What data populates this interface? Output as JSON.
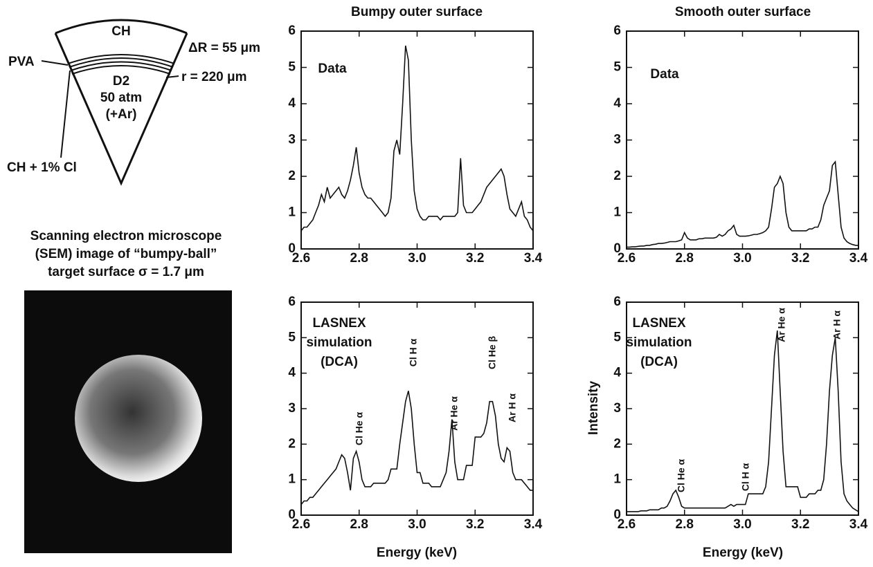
{
  "chart_data": [
    {
      "type": "line",
      "title": "Bumpy outer surface",
      "text_lines": [
        "Data"
      ],
      "annotations": [],
      "x": [
        2.6,
        2.61,
        2.62,
        2.63,
        2.64,
        2.65,
        2.66,
        2.67,
        2.68,
        2.69,
        2.7,
        2.71,
        2.72,
        2.73,
        2.74,
        2.75,
        2.76,
        2.77,
        2.78,
        2.79,
        2.8,
        2.81,
        2.82,
        2.83,
        2.84,
        2.85,
        2.86,
        2.87,
        2.88,
        2.89,
        2.9,
        2.91,
        2.92,
        2.93,
        2.94,
        2.95,
        2.96,
        2.97,
        2.98,
        2.99,
        3.0,
        3.01,
        3.02,
        3.03,
        3.04,
        3.05,
        3.06,
        3.07,
        3.08,
        3.09,
        3.1,
        3.11,
        3.12,
        3.13,
        3.14,
        3.15,
        3.16,
        3.17,
        3.18,
        3.19,
        3.2,
        3.21,
        3.22,
        3.23,
        3.24,
        3.25,
        3.26,
        3.27,
        3.28,
        3.29,
        3.3,
        3.31,
        3.32,
        3.33,
        3.34,
        3.35,
        3.36,
        3.37,
        3.38,
        3.39,
        3.4
      ],
      "series": [
        {
          "color": "#111111",
          "values": [
            0.5,
            0.6,
            0.6,
            0.7,
            0.8,
            1.0,
            1.2,
            1.5,
            1.3,
            1.7,
            1.4,
            1.5,
            1.6,
            1.7,
            1.5,
            1.4,
            1.6,
            1.9,
            2.3,
            2.8,
            2.1,
            1.7,
            1.5,
            1.4,
            1.4,
            1.3,
            1.2,
            1.1,
            1.0,
            0.9,
            1.0,
            1.4,
            2.7,
            3.0,
            2.6,
            4.0,
            5.6,
            5.2,
            3.0,
            1.6,
            1.1,
            0.9,
            0.8,
            0.8,
            0.9,
            0.9,
            0.9,
            0.9,
            0.8,
            0.9,
            0.9,
            0.9,
            0.9,
            0.9,
            1.0,
            2.5,
            1.2,
            1.0,
            1.0,
            1.0,
            1.1,
            1.2,
            1.3,
            1.5,
            1.7,
            1.8,
            1.9,
            2.0,
            2.1,
            2.2,
            2.0,
            1.5,
            1.1,
            1.0,
            0.9,
            1.1,
            1.3,
            0.9,
            0.8,
            0.6,
            0.5
          ]
        }
      ],
      "xlim": [
        2.6,
        3.4
      ],
      "ylim": [
        0,
        6
      ],
      "xticks": [
        2.6,
        2.8,
        {
          "value": 3,
          "label": "3.0"
        },
        3.2,
        3.4
      ],
      "yticks": [
        0,
        1,
        2,
        3,
        4,
        5,
        6
      ]
    },
    {
      "type": "line",
      "title": "Smooth outer surface",
      "text_lines": [
        "Data"
      ],
      "annotations": [],
      "x": [
        2.6,
        2.61,
        2.62,
        2.63,
        2.64,
        2.65,
        2.66,
        2.67,
        2.68,
        2.69,
        2.7,
        2.71,
        2.72,
        2.73,
        2.74,
        2.75,
        2.76,
        2.77,
        2.78,
        2.79,
        2.8,
        2.81,
        2.82,
        2.83,
        2.84,
        2.85,
        2.86,
        2.87,
        2.88,
        2.89,
        2.9,
        2.91,
        2.92,
        2.93,
        2.94,
        2.95,
        2.96,
        2.97,
        2.98,
        2.99,
        3.0,
        3.01,
        3.02,
        3.03,
        3.04,
        3.05,
        3.06,
        3.07,
        3.08,
        3.09,
        3.1,
        3.11,
        3.12,
        3.13,
        3.14,
        3.15,
        3.16,
        3.17,
        3.18,
        3.19,
        3.2,
        3.21,
        3.22,
        3.23,
        3.24,
        3.25,
        3.26,
        3.27,
        3.28,
        3.29,
        3.3,
        3.31,
        3.32,
        3.33,
        3.34,
        3.35,
        3.36,
        3.37,
        3.38,
        3.39,
        3.4
      ],
      "series": [
        {
          "color": "#111111",
          "values": [
            0.05,
            0.05,
            0.06,
            0.06,
            0.07,
            0.08,
            0.08,
            0.1,
            0.1,
            0.12,
            0.13,
            0.15,
            0.15,
            0.16,
            0.18,
            0.2,
            0.2,
            0.2,
            0.22,
            0.25,
            0.45,
            0.3,
            0.25,
            0.25,
            0.25,
            0.28,
            0.28,
            0.3,
            0.3,
            0.3,
            0.3,
            0.32,
            0.4,
            0.35,
            0.4,
            0.5,
            0.55,
            0.65,
            0.4,
            0.35,
            0.35,
            0.35,
            0.36,
            0.38,
            0.4,
            0.4,
            0.42,
            0.45,
            0.5,
            0.6,
            1.1,
            1.7,
            1.8,
            2.0,
            1.8,
            1.0,
            0.6,
            0.5,
            0.5,
            0.5,
            0.5,
            0.5,
            0.5,
            0.55,
            0.55,
            0.6,
            0.6,
            0.8,
            1.2,
            1.4,
            1.6,
            2.3,
            2.4,
            1.5,
            0.6,
            0.3,
            0.2,
            0.15,
            0.12,
            0.1,
            0.1
          ]
        }
      ],
      "xlim": [
        2.6,
        3.4
      ],
      "ylim": [
        0,
        6
      ],
      "xticks": [
        2.6,
        2.8,
        {
          "value": 3,
          "label": "3.0"
        },
        3.2,
        3.4
      ],
      "yticks": [
        0,
        1,
        2,
        3,
        4,
        5,
        6
      ]
    },
    {
      "type": "line",
      "x_label": "Energy (keV)",
      "text_lines": [
        "LASNEX",
        "simulation",
        "(DCA)"
      ],
      "annotations": [
        "Cl He α",
        "Cl H α",
        "Ar He α",
        "Cl He β",
        "Ar H α"
      ],
      "x": [
        2.6,
        2.61,
        2.62,
        2.63,
        2.64,
        2.65,
        2.66,
        2.67,
        2.68,
        2.69,
        2.7,
        2.71,
        2.72,
        2.73,
        2.74,
        2.75,
        2.76,
        2.77,
        2.78,
        2.79,
        2.8,
        2.81,
        2.82,
        2.83,
        2.84,
        2.85,
        2.86,
        2.87,
        2.88,
        2.89,
        2.9,
        2.91,
        2.92,
        2.93,
        2.94,
        2.95,
        2.96,
        2.97,
        2.98,
        2.99,
        3.0,
        3.01,
        3.02,
        3.03,
        3.04,
        3.05,
        3.06,
        3.07,
        3.08,
        3.09,
        3.1,
        3.11,
        3.12,
        3.13,
        3.14,
        3.15,
        3.16,
        3.17,
        3.18,
        3.19,
        3.2,
        3.21,
        3.22,
        3.23,
        3.24,
        3.25,
        3.26,
        3.27,
        3.28,
        3.29,
        3.3,
        3.31,
        3.32,
        3.33,
        3.34,
        3.35,
        3.36,
        3.37,
        3.38,
        3.39,
        3.4
      ],
      "series": [
        {
          "color": "#111111",
          "values": [
            0.3,
            0.4,
            0.4,
            0.5,
            0.5,
            0.6,
            0.7,
            0.8,
            0.9,
            1.0,
            1.1,
            1.2,
            1.3,
            1.5,
            1.7,
            1.6,
            1.2,
            0.7,
            1.6,
            1.8,
            1.5,
            1.0,
            0.8,
            0.8,
            0.8,
            0.9,
            0.9,
            0.9,
            0.9,
            0.9,
            1.0,
            1.3,
            1.3,
            1.3,
            2.0,
            2.6,
            3.2,
            3.5,
            3.0,
            2.0,
            1.2,
            1.2,
            0.9,
            0.9,
            0.9,
            0.8,
            0.8,
            0.8,
            0.8,
            1.0,
            1.2,
            1.8,
            2.7,
            1.5,
            1.0,
            1.0,
            1.0,
            1.4,
            1.4,
            1.4,
            2.2,
            2.2,
            2.2,
            2.3,
            2.6,
            3.2,
            3.2,
            2.8,
            2.0,
            1.6,
            1.5,
            1.9,
            1.8,
            1.2,
            1.0,
            1.0,
            1.0,
            0.9,
            0.8,
            0.7,
            0.7
          ]
        }
      ],
      "xlim": [
        2.6,
        3.4
      ],
      "ylim": [
        0,
        6
      ],
      "xticks": [
        2.6,
        2.8,
        {
          "value": 3,
          "label": "3.0"
        },
        3.2,
        3.4
      ],
      "yticks": [
        0,
        1,
        2,
        3,
        4,
        5,
        6
      ]
    },
    {
      "type": "line",
      "x_label": "Energy (keV)",
      "y_label": "Intensity",
      "text_lines": [
        "LASNEX",
        "simulation",
        "(DCA)"
      ],
      "annotations": [
        "Cl He α",
        "Cl H α",
        "Ar He α",
        "Ar H α"
      ],
      "x": [
        2.6,
        2.61,
        2.62,
        2.63,
        2.64,
        2.65,
        2.66,
        2.67,
        2.68,
        2.69,
        2.7,
        2.71,
        2.72,
        2.73,
        2.74,
        2.75,
        2.76,
        2.77,
        2.78,
        2.79,
        2.8,
        2.81,
        2.82,
        2.83,
        2.84,
        2.85,
        2.86,
        2.87,
        2.88,
        2.89,
        2.9,
        2.91,
        2.92,
        2.93,
        2.94,
        2.95,
        2.96,
        2.97,
        2.98,
        2.99,
        3.0,
        3.01,
        3.02,
        3.03,
        3.04,
        3.05,
        3.06,
        3.07,
        3.08,
        3.09,
        3.1,
        3.11,
        3.12,
        3.13,
        3.14,
        3.15,
        3.16,
        3.17,
        3.18,
        3.19,
        3.2,
        3.21,
        3.22,
        3.23,
        3.24,
        3.25,
        3.26,
        3.27,
        3.28,
        3.29,
        3.3,
        3.31,
        3.32,
        3.33,
        3.34,
        3.35,
        3.36,
        3.37,
        3.38,
        3.39,
        3.4
      ],
      "series": [
        {
          "color": "#111111",
          "values": [
            0.1,
            0.1,
            0.1,
            0.1,
            0.1,
            0.12,
            0.12,
            0.12,
            0.15,
            0.15,
            0.15,
            0.15,
            0.2,
            0.2,
            0.25,
            0.4,
            0.6,
            0.7,
            0.5,
            0.25,
            0.2,
            0.2,
            0.2,
            0.2,
            0.2,
            0.2,
            0.2,
            0.2,
            0.2,
            0.2,
            0.2,
            0.2,
            0.2,
            0.2,
            0.2,
            0.25,
            0.3,
            0.25,
            0.3,
            0.3,
            0.3,
            0.3,
            0.6,
            0.6,
            0.6,
            0.6,
            0.6,
            0.6,
            0.8,
            1.5,
            3.0,
            4.5,
            5.2,
            3.5,
            1.8,
            0.8,
            0.8,
            0.8,
            0.8,
            0.8,
            0.5,
            0.5,
            0.5,
            0.6,
            0.6,
            0.6,
            0.7,
            0.7,
            1.0,
            2.0,
            3.5,
            4.5,
            5.0,
            3.5,
            1.5,
            0.6,
            0.4,
            0.3,
            0.2,
            0.15,
            0.1
          ]
        }
      ],
      "xlim": [
        2.6,
        3.4
      ],
      "ylim": [
        0,
        6
      ],
      "xticks": [
        2.6,
        2.8,
        {
          "value": 3,
          "label": "3.0"
        },
        3.2,
        3.4
      ],
      "yticks": [
        0,
        1,
        2,
        3,
        4,
        5,
        6
      ]
    }
  ],
  "diagram": {
    "labels": [
      "CH",
      "D2",
      "50 atm",
      "(+Ar)",
      "PVA",
      "CH + 1% Cl",
      "ΔR = 55 μm",
      "r = 220 μm"
    ]
  },
  "sem_caption": [
    "Scanning electron microscope",
    "(SEM) image of “bumpy-ball”",
    "target surface σ = 1.7 μm"
  ]
}
